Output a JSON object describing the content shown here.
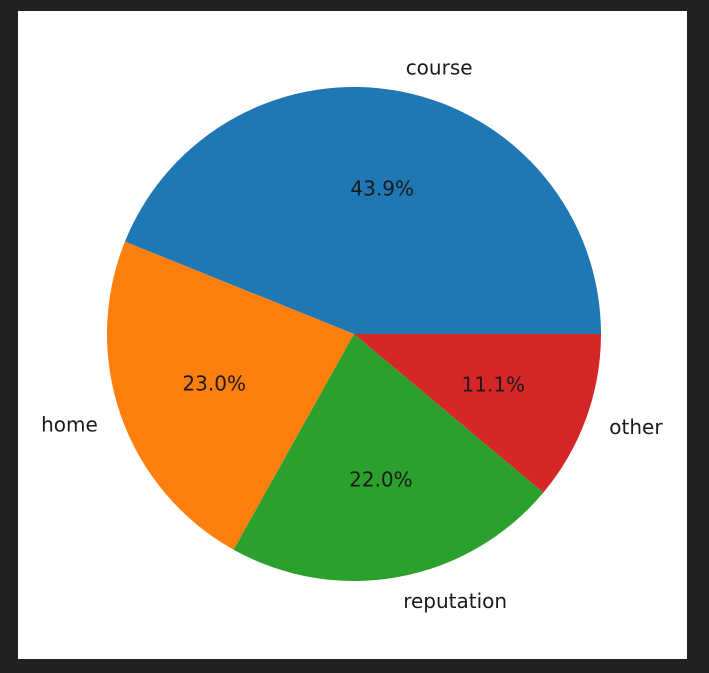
{
  "chart_data": {
    "type": "pie",
    "categories": [
      "course",
      "home",
      "reputation",
      "other"
    ],
    "values": [
      43.9,
      23.0,
      22.0,
      11.1
    ],
    "percent_labels": [
      "43.9%",
      "23.0%",
      "22.0%",
      "11.1%"
    ],
    "colors": [
      "#1f77b4",
      "#ff7f0e",
      "#2ca02c",
      "#d62728"
    ],
    "start_angle_deg": 0,
    "direction": "counterclockwise",
    "title": ""
  }
}
